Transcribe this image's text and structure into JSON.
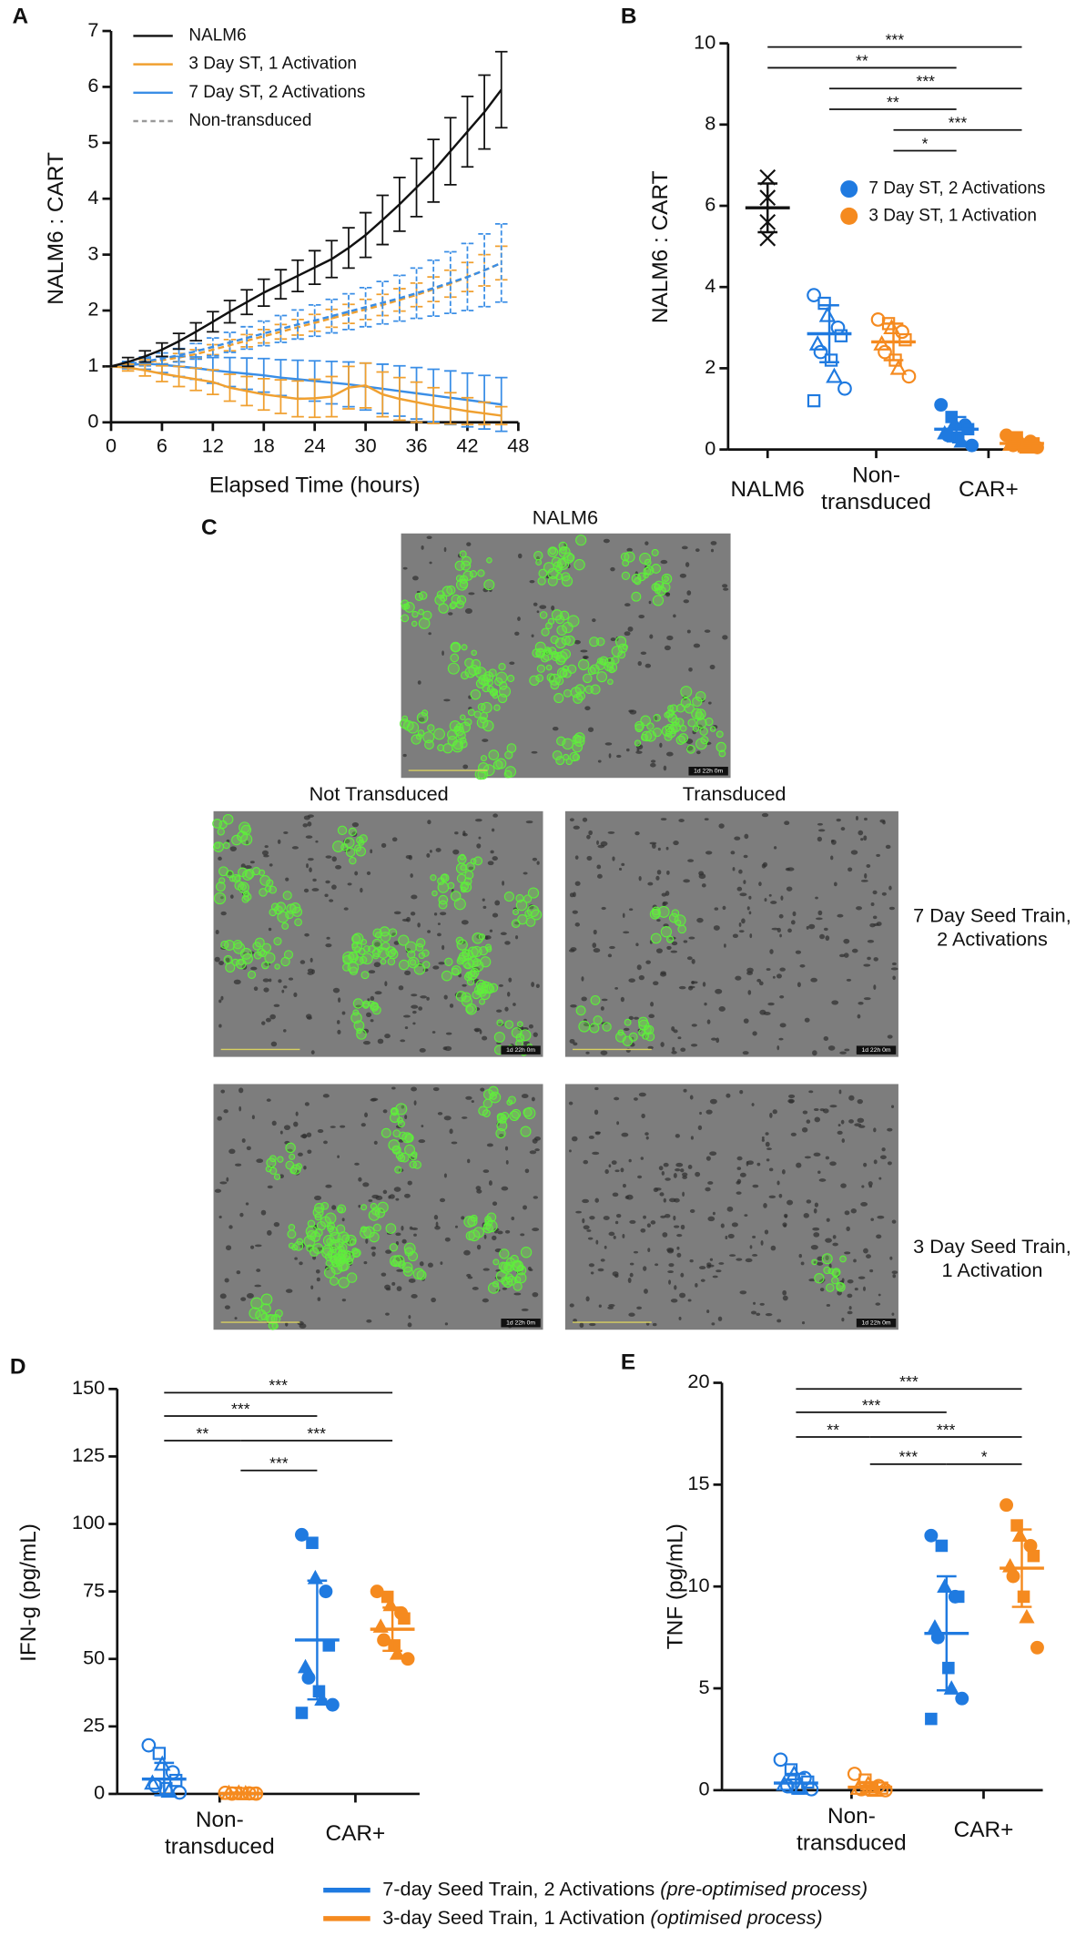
{
  "chart_data": [
    {
      "type": "line",
      "panel": "A",
      "xlabel": "Elapsed Time (hours)",
      "ylabel": "NALM6 : CART",
      "x": [
        0,
        2,
        4,
        6,
        8,
        10,
        12,
        14,
        16,
        18,
        20,
        22,
        24,
        26,
        28,
        30,
        32,
        34,
        36,
        38,
        40,
        42,
        44,
        46
      ],
      "xlim": [
        0,
        48
      ],
      "xticks": [
        0,
        6,
        12,
        18,
        24,
        30,
        36,
        42,
        48
      ],
      "ylim": [
        0,
        7
      ],
      "yticks": [
        0,
        1,
        2,
        3,
        4,
        5,
        6,
        7
      ],
      "legend": "upper left",
      "series": [
        {
          "name": "NALM6",
          "color": "#111111",
          "values": [
            1,
            1.08,
            1.18,
            1.3,
            1.45,
            1.62,
            1.8,
            1.98,
            2.15,
            2.32,
            2.47,
            2.62,
            2.77,
            2.92,
            3.12,
            3.35,
            3.62,
            3.9,
            4.2,
            4.5,
            4.85,
            5.2,
            5.55,
            5.95
          ],
          "errors": [
            0,
            0.08,
            0.1,
            0.12,
            0.14,
            0.16,
            0.18,
            0.2,
            0.22,
            0.24,
            0.26,
            0.28,
            0.3,
            0.33,
            0.36,
            0.4,
            0.44,
            0.48,
            0.52,
            0.56,
            0.6,
            0.63,
            0.66,
            0.68
          ]
        },
        {
          "name": "3 Day ST, 1 Activation",
          "color": "#f0a030",
          "values": [
            1,
            0.98,
            0.93,
            0.87,
            0.82,
            0.77,
            0.72,
            0.62,
            0.56,
            0.5,
            0.46,
            0.42,
            0.43,
            0.46,
            0.62,
            0.66,
            0.5,
            0.42,
            0.36,
            0.3,
            0.25,
            0.2,
            0.16,
            0.12
          ],
          "errors": [
            0,
            0.06,
            0.1,
            0.14,
            0.18,
            0.2,
            0.22,
            0.24,
            0.26,
            0.28,
            0.3,
            0.32,
            0.34,
            0.36,
            0.38,
            0.4,
            0.4,
            0.38,
            0.36,
            0.32,
            0.28,
            0.24,
            0.2,
            0.16
          ]
        },
        {
          "name": "7 Day ST, 2 Activations",
          "color": "#3a8ee6",
          "values": [
            1,
            1.02,
            1.05,
            1.03,
            1,
            0.97,
            0.93,
            0.9,
            0.87,
            0.84,
            0.8,
            0.77,
            0.74,
            0.71,
            0.68,
            0.64,
            0.6,
            0.56,
            0.52,
            0.48,
            0.44,
            0.4,
            0.36,
            0.32
          ],
          "errors": [
            0,
            0.06,
            0.1,
            0.14,
            0.18,
            0.2,
            0.23,
            0.26,
            0.28,
            0.3,
            0.32,
            0.34,
            0.36,
            0.38,
            0.4,
            0.42,
            0.44,
            0.45,
            0.46,
            0.47,
            0.48,
            0.48,
            0.48,
            0.48
          ]
        }
      ],
      "dashed": {
        "name": "Non-transduced",
        "color": "#999999",
        "series": [
          {
            "color": "#f0a030",
            "values": [
              1,
              1.03,
              1.07,
              1.11,
              1.16,
              1.22,
              1.3,
              1.38,
              1.46,
              1.54,
              1.62,
              1.7,
              1.78,
              1.86,
              1.94,
              2.02,
              2.1,
              2.19,
              2.28,
              2.38,
              2.48,
              2.6,
              2.72,
              2.85
            ],
            "errors": [
              0,
              0.04,
              0.05,
              0.06,
              0.07,
              0.08,
              0.09,
              0.1,
              0.11,
              0.12,
              0.13,
              0.14,
              0.15,
              0.16,
              0.17,
              0.18,
              0.19,
              0.2,
              0.21,
              0.22,
              0.24,
              0.26,
              0.28,
              0.3
            ]
          },
          {
            "color": "#3a8ee6",
            "values": [
              1,
              1.04,
              1.09,
              1.14,
              1.2,
              1.27,
              1.35,
              1.43,
              1.51,
              1.59,
              1.67,
              1.75,
              1.82,
              1.9,
              1.98,
              2.06,
              2.14,
              2.22,
              2.31,
              2.4,
              2.5,
              2.6,
              2.72,
              2.85
            ],
            "errors": [
              0,
              0.05,
              0.08,
              0.1,
              0.12,
              0.14,
              0.16,
              0.18,
              0.2,
              0.22,
              0.24,
              0.26,
              0.28,
              0.3,
              0.32,
              0.35,
              0.38,
              0.41,
              0.45,
              0.5,
              0.55,
              0.6,
              0.65,
              0.7
            ]
          }
        ]
      }
    },
    {
      "type": "strip",
      "panel": "B",
      "ylabel": "NALM6 : CART",
      "ylim": [
        0,
        10
      ],
      "yticks": [
        0,
        2,
        4,
        6,
        8,
        10
      ],
      "categories": [
        "NALM6",
        "Non-\ntransduced",
        "CAR+"
      ],
      "legend": "upper right",
      "series": [
        {
          "color": "#111111",
          "values": [
            [
              6.7,
              6.2,
              5.6,
              5.2
            ],
            null,
            null
          ],
          "means": [
            5.95,
            null,
            null
          ],
          "sds": [
            0.6,
            null,
            null
          ]
        },
        {
          "name": "7 Day ST, 2 Activations",
          "color": "#1f7ae0",
          "values": [
            null,
            [
              3.8,
              3.6,
              3.3,
              3.0,
              2.8,
              2.6,
              2.4,
              2.2,
              1.8,
              1.5,
              1.2
            ],
            [
              1.1,
              0.8,
              0.65,
              0.6,
              0.5,
              0.4,
              0.35,
              0.3,
              0.2,
              0.1
            ]
          ],
          "means": [
            null,
            2.85,
            0.5
          ],
          "sds": [
            null,
            0.7,
            0.3
          ]
        },
        {
          "name": "3 Day ST, 1 Activation",
          "color": "#f58a1f",
          "values": [
            null,
            [
              3.2,
              3.1,
              3.0,
              2.9,
              2.7,
              2.6,
              2.4,
              2.2,
              2.0,
              1.8
            ],
            [
              0.35,
              0.3,
              0.25,
              0.2,
              0.15,
              0.12,
              0.1,
              0.08,
              0.05,
              0.05
            ]
          ],
          "means": [
            null,
            2.65,
            0.15
          ],
          "sds": [
            null,
            0.45,
            0.1
          ]
        }
      ],
      "brackets": [
        {
          "label": "***",
          "from": 0,
          "to": 4
        },
        {
          "label": "**",
          "from": 0,
          "to": 3
        },
        {
          "label": "***",
          "from": 1,
          "to": 4
        },
        {
          "label": "**",
          "from": 1,
          "to": 3
        },
        {
          "label": "***",
          "from": 2,
          "to": 4
        },
        {
          "label": "*",
          "from": 2,
          "to": 3
        }
      ]
    },
    {
      "type": "strip",
      "panel": "D",
      "ylabel": "IFN-g (pg/mL)",
      "ylim": [
        0,
        150
      ],
      "yticks": [
        0,
        25,
        50,
        75,
        100,
        125,
        150
      ],
      "categories": [
        "Non-\ntransduced",
        "CAR+"
      ],
      "series": [
        {
          "color": "#1f7ae0",
          "values": [
            [
              18,
              15,
              11,
              8,
              5,
              4,
              3,
              2,
              1,
              0.5
            ],
            [
              96,
              93,
              80,
              75,
              55,
              47,
              43,
              38,
              35,
              33,
              30
            ]
          ],
          "means": [
            5.5,
            57
          ],
          "sds": [
            6,
            22
          ]
        },
        {
          "color": "#f58a1f",
          "values": [
            [
              0.4,
              0.3,
              0.3,
              0.2,
              0.2,
              0.2,
              0.1,
              0.1,
              0.1,
              0.1
            ],
            [
              75,
              73,
              70,
              67,
              65,
              62,
              57,
              55,
              52,
              50
            ]
          ],
          "means": [
            0.2,
            61
          ],
          "sds": [
            0.3,
            8
          ]
        }
      ],
      "brackets": [
        {
          "label": "***",
          "from": 0,
          "to": 3
        },
        {
          "label": "***",
          "from": 0,
          "to": 2
        },
        {
          "label": "**",
          "from": 0,
          "to": 1
        },
        {
          "label": "***",
          "from": 1,
          "to": 3
        },
        {
          "label": "***",
          "from": 1,
          "to": 2
        }
      ]
    },
    {
      "type": "strip",
      "panel": "E",
      "ylabel": "TNF (pg/mL)",
      "ylim": [
        0,
        20
      ],
      "yticks": [
        0,
        5,
        10,
        15,
        20
      ],
      "categories": [
        "Non-\ntransduced",
        "CAR+"
      ],
      "series": [
        {
          "color": "#1f7ae0",
          "values": [
            [
              1.5,
              1.0,
              0.8,
              0.6,
              0.4,
              0.3,
              0.2,
              0.1,
              0.1,
              0.05
            ],
            [
              12.5,
              12,
              10,
              9.5,
              9.5,
              8,
              7.5,
              6,
              5,
              4.5,
              3.5
            ]
          ],
          "means": [
            0.35,
            7.7
          ],
          "sds": [
            0.45,
            2.8
          ]
        },
        {
          "color": "#f58a1f",
          "values": [
            [
              0.8,
              0.5,
              0.3,
              0.2,
              0.1,
              0.1,
              0.05,
              0.05,
              0,
              0
            ],
            [
              14,
              13,
              12.5,
              12,
              11.5,
              11,
              10.5,
              9.5,
              8.5,
              7
            ]
          ],
          "means": [
            0.15,
            10.9
          ],
          "sds": [
            0.25,
            1.9
          ]
        }
      ],
      "brackets": [
        {
          "label": "***",
          "from": 0,
          "to": 3
        },
        {
          "label": "***",
          "from": 0,
          "to": 2
        },
        {
          "label": "**",
          "from": 0,
          "to": 1
        },
        {
          "label": "***",
          "from": 1,
          "to": 3
        },
        {
          "label": "***",
          "from": 1,
          "to": 2
        },
        {
          "label": "*",
          "from": 2,
          "to": 3
        }
      ]
    }
  ],
  "panel_c": {
    "panel": "C",
    "top_label": "NALM6",
    "columns": [
      "Not Transduced",
      "Transduced"
    ],
    "rows": [
      "7 Day Seed Train,\n2 Activations",
      "3 Day Seed Train,\n1 Activation"
    ],
    "timestamp": "1d 22h 0m"
  },
  "legend": {
    "entries": [
      {
        "name": "7-day Seed Train, 2 Activations",
        "note": "(pre-optimised process)",
        "color": "#1f7ae0"
      },
      {
        "name": "3-day Seed Train, 1 Activation",
        "note": "(optimised process)",
        "color": "#f58a1f"
      }
    ]
  }
}
